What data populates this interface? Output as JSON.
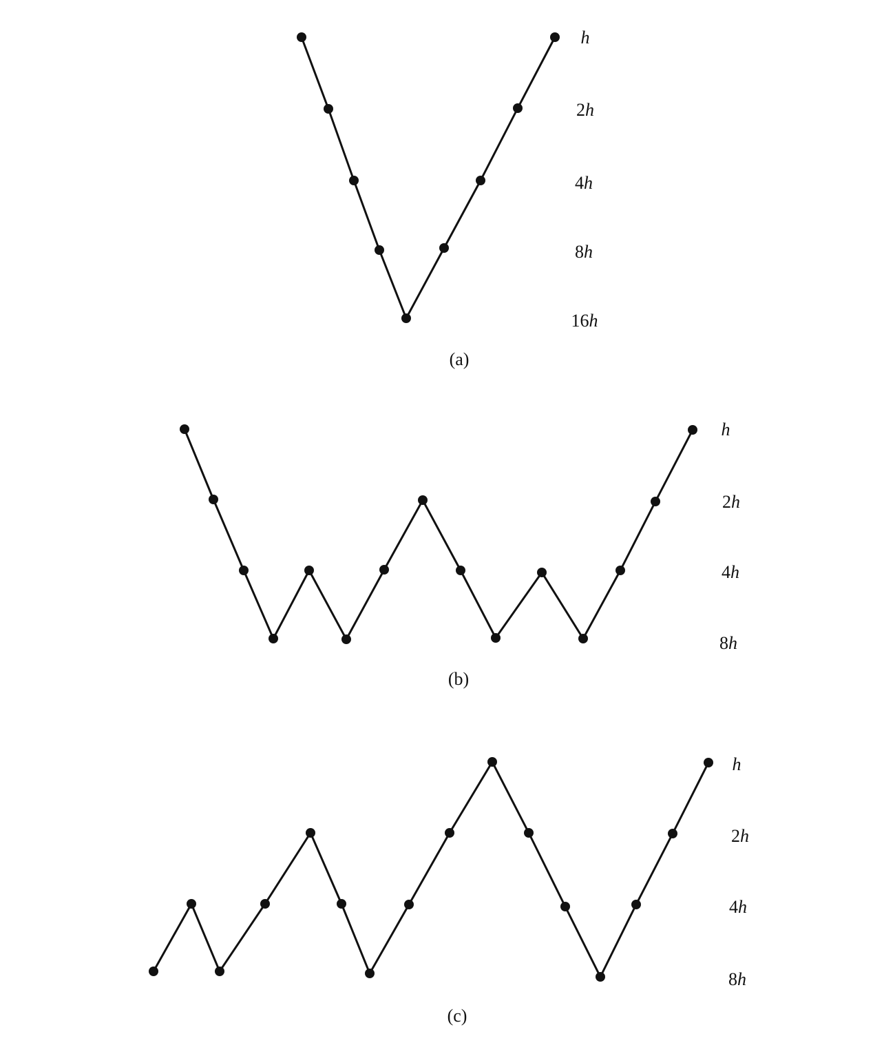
{
  "panels": [
    {
      "caption": "(a)",
      "levels": [
        {
          "coef": "",
          "var": "h"
        },
        {
          "coef": "2",
          "var": "h"
        },
        {
          "coef": "4",
          "var": "h"
        },
        {
          "coef": "8",
          "var": "h"
        },
        {
          "coef": "16",
          "var": "h"
        }
      ],
      "path": [
        0,
        1,
        2,
        3,
        4,
        3,
        2,
        1,
        0
      ]
    },
    {
      "caption": "(b)",
      "levels": [
        {
          "coef": "",
          "var": "h"
        },
        {
          "coef": "2",
          "var": "h"
        },
        {
          "coef": "4",
          "var": "h"
        },
        {
          "coef": "8",
          "var": "h"
        }
      ],
      "path": [
        0,
        1,
        2,
        3,
        2,
        3,
        2,
        1,
        2,
        3,
        2,
        3,
        2,
        1,
        0
      ]
    },
    {
      "caption": "(c)",
      "levels": [
        {
          "coef": "",
          "var": "h"
        },
        {
          "coef": "2",
          "var": "h"
        },
        {
          "coef": "4",
          "var": "h"
        },
        {
          "coef": "8",
          "var": "h"
        }
      ],
      "path": [
        3,
        2,
        3,
        2,
        1,
        2,
        3,
        2,
        1,
        0,
        1,
        2,
        3,
        2,
        1,
        0
      ]
    }
  ]
}
